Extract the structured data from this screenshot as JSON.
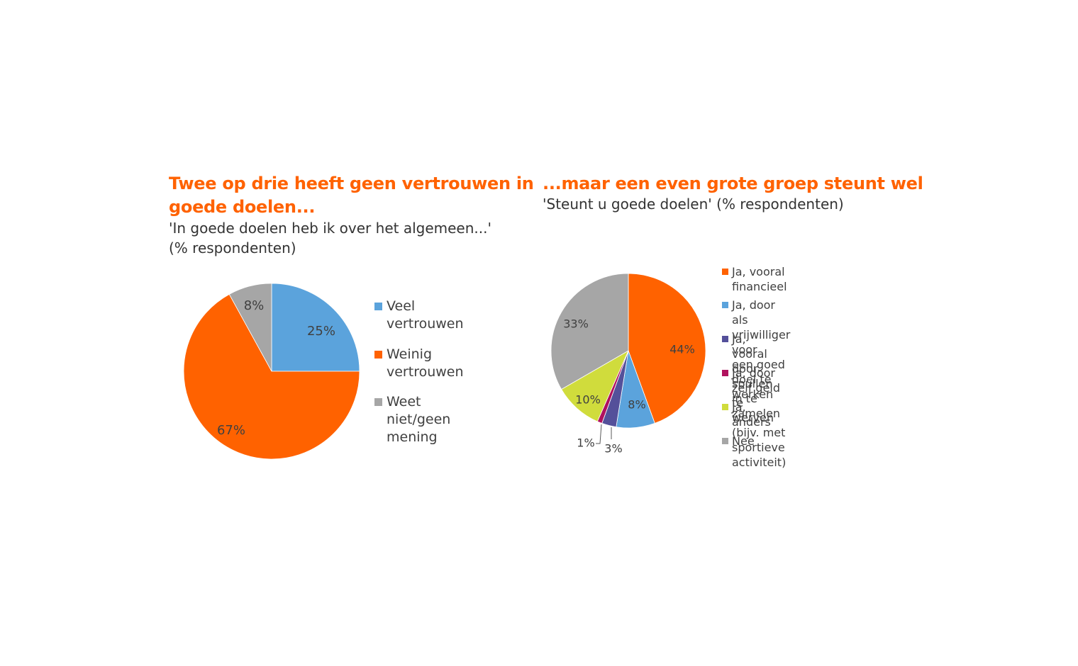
{
  "chart_data": [
    {
      "type": "pie",
      "title": "Twee op drie heeft geen vertrouwen in goede doelen...",
      "title_lines": [
        "Twee op drie heeft geen vertrouwen in",
        "goede doelen..."
      ],
      "subtitle": "'In goede doelen heb ik over het algemeen...' (% respondenten)",
      "subtitle_lines": [
        "'In goede doelen heb ik over het algemeen...'",
        "(% respondenten)"
      ],
      "slices": [
        {
          "name": "Veel vertrouwen",
          "label_lines": [
            "Veel",
            "vertrouwen"
          ],
          "value": 25,
          "data_label": "25%",
          "color": "#5ba3dc"
        },
        {
          "name": "Weinig vertrouwen",
          "label_lines": [
            "Weinig",
            "vertrouwen"
          ],
          "value": 67,
          "data_label": "67%",
          "color": "#ff6200"
        },
        {
          "name": "Weet niet/geen mening",
          "label_lines": [
            "Weet niet/geen",
            "mening"
          ],
          "value": 8,
          "data_label": "8%",
          "color": "#a6a6a6"
        }
      ],
      "legend_position": "right"
    },
    {
      "type": "pie",
      "title": "...maar een even grote groep steunt wel",
      "subtitle": "'Steunt u goede doelen' (% respondenten)",
      "slices": [
        {
          "name": "Ja, vooral financieel",
          "label_lines": [
            "Ja, vooral financieel"
          ],
          "value": 44,
          "data_label": "44%",
          "color": "#ff6200"
        },
        {
          "name": "Ja, door als vrijwilliger voor een goed doel te werken",
          "label_lines": [
            "Ja, door als vrijwilliger voor",
            "een goed doel te werken"
          ],
          "value": 8,
          "data_label": "8%",
          "color": "#5ba3dc"
        },
        {
          "name": "Ja, vooral door spullen in te zamelen",
          "label_lines": [
            "Ja, vooral door spullen in te",
            "zamelen"
          ],
          "value": 3,
          "data_label": "3%",
          "color": "#54509a"
        },
        {
          "name": "Ja, door zelf geld te werven (bijv. met sportieve activiteit)",
          "label_lines": [
            "Ja, door zelf geld te werven",
            "(bijv. met sportieve activiteit)"
          ],
          "value": 1,
          "data_label": "1%",
          "color": "#b0115e"
        },
        {
          "name": "Ja, anders",
          "label_lines": [
            "Ja, anders"
          ],
          "value": 10,
          "data_label": "10%",
          "color": "#d0dc3c"
        },
        {
          "name": "Nee",
          "label_lines": [
            "Nee"
          ],
          "value": 33,
          "data_label": "33%",
          "color": "#a6a6a6"
        }
      ],
      "legend_position": "right"
    }
  ]
}
